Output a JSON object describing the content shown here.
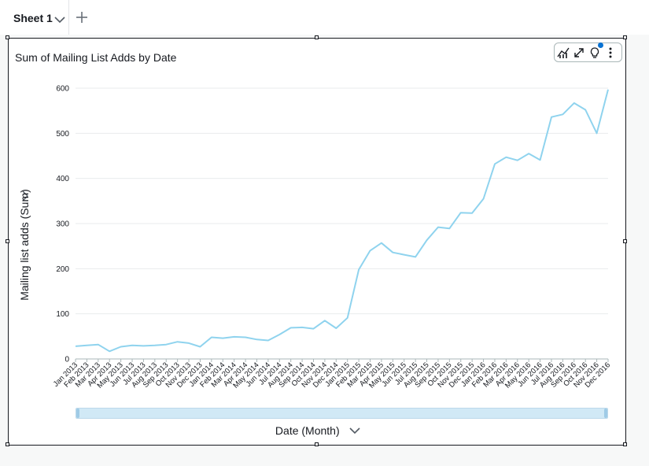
{
  "tabs": [
    {
      "label": "Sheet 1"
    }
  ],
  "visual": {
    "title": "Sum of Mailing List Adds by Date",
    "toolbar_icons": [
      "visual-type-icon",
      "expand-icon",
      "insights-lightbulb-icon",
      "more-menu-icon"
    ]
  },
  "colors": {
    "line": "#8fd3ee",
    "grid": "#e9ebed",
    "text": "#16191f",
    "scroll_track": "#d1e9f6"
  },
  "chart_data": {
    "type": "line",
    "title": "Sum of Mailing List Adds by Date",
    "xlabel": "Date (Month)",
    "ylabel": "Mailing list adds (Sum)",
    "ylim": [
      0,
      600
    ],
    "yticks": [
      0,
      100,
      200,
      300,
      400,
      500,
      600
    ],
    "grid": true,
    "categories": [
      "Jan 2013",
      "Feb 2013",
      "Mar 2013",
      "Apr 2013",
      "May 2013",
      "Jun 2013",
      "Jul 2013",
      "Aug 2013",
      "Sep 2013",
      "Oct 2013",
      "Nov 2013",
      "Dec 2013",
      "Jan 2014",
      "Feb 2014",
      "Mar 2014",
      "Apr 2014",
      "May 2014",
      "Jun 2014",
      "Jul 2014",
      "Aug 2014",
      "Sep 2014",
      "Oct 2014",
      "Nov 2014",
      "Dec 2014",
      "Jan 2015",
      "Feb 2015",
      "Mar 2015",
      "Apr 2015",
      "May 2015",
      "Jun 2015",
      "Jul 2015",
      "Aug 2015",
      "Sep 2015",
      "Oct 2015",
      "Nov 2015",
      "Dec 2015",
      "Jan 2016",
      "Feb 2016",
      "Mar 2016",
      "Apr 2016",
      "May 2016",
      "Jun 2016",
      "Jul 2016",
      "Aug 2016",
      "Sep 2016",
      "Oct 2016",
      "Nov 2016",
      "Dec 2016"
    ],
    "series": [
      {
        "values": [
          28,
          30,
          32,
          17,
          27,
          30,
          29,
          30,
          32,
          38,
          35,
          27,
          48,
          46,
          49,
          48,
          43,
          41,
          54,
          69,
          70,
          67,
          85,
          68,
          91,
          198,
          240,
          257,
          236,
          231,
          226,
          263,
          292,
          289,
          324,
          323,
          355,
          432,
          447,
          440,
          455,
          441,
          536,
          542,
          567,
          552,
          500,
          597
        ]
      }
    ]
  }
}
